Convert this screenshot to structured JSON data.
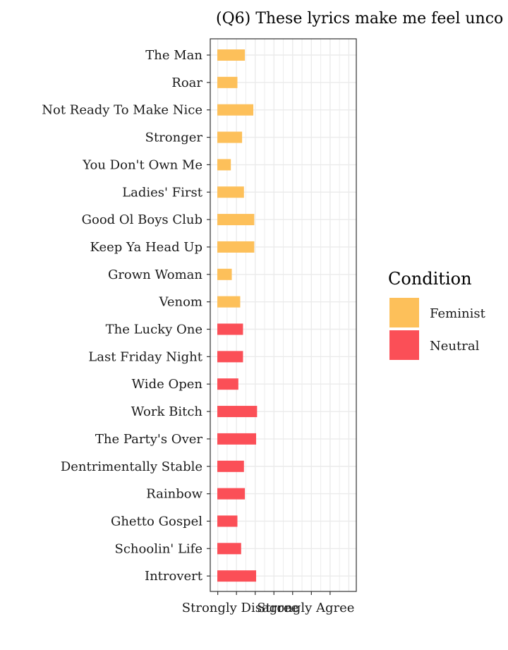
{
  "chart_data": {
    "type": "bar",
    "orientation": "horizontal",
    "title": "(Q6) These lyrics make me feel unco",
    "xlabel": "",
    "ylabel": "",
    "xlim": [
      0.6,
      8.4
    ],
    "x_ticks": [
      1,
      2,
      3,
      4,
      5,
      6,
      7
    ],
    "x_tick_labels": [
      "Strongly Disagree",
      "Strongly Agree"
    ],
    "x_tick_label_positions": [
      2.2,
      5.7
    ],
    "grid": true,
    "legend_position": "right",
    "legend": {
      "title": "Condition",
      "entries": [
        {
          "name": "Feminist",
          "color": "#FDC05A"
        },
        {
          "name": "Neutral",
          "color": "#FB4F57"
        }
      ]
    },
    "categories": [
      "The Man",
      "Roar",
      "Not Ready To Make Nice",
      "Stronger",
      "You Don't Own Me",
      "Ladies' First",
      "Good Ol Boys Club",
      "Keep Ya Head Up",
      "Grown Woman",
      "Venom",
      "The Lucky One",
      "Last Friday Night",
      "Wide Open",
      "Work Bitch",
      "The Party's Over",
      "Dentrimentally Stable",
      "Rainbow",
      "Ghetto Gospel",
      "Schoolin' Life",
      "Introvert"
    ],
    "conditions": [
      "Feminist",
      "Feminist",
      "Feminist",
      "Feminist",
      "Feminist",
      "Feminist",
      "Feminist",
      "Feminist",
      "Feminist",
      "Feminist",
      "Neutral",
      "Neutral",
      "Neutral",
      "Neutral",
      "Neutral",
      "Neutral",
      "Neutral",
      "Neutral",
      "Neutral",
      "Neutral"
    ],
    "values": [
      2.45,
      2.05,
      2.9,
      2.3,
      1.7,
      2.4,
      2.95,
      2.95,
      1.75,
      2.2,
      2.35,
      2.35,
      2.1,
      3.1,
      3.05,
      2.4,
      2.45,
      2.05,
      2.25,
      3.05
    ]
  }
}
